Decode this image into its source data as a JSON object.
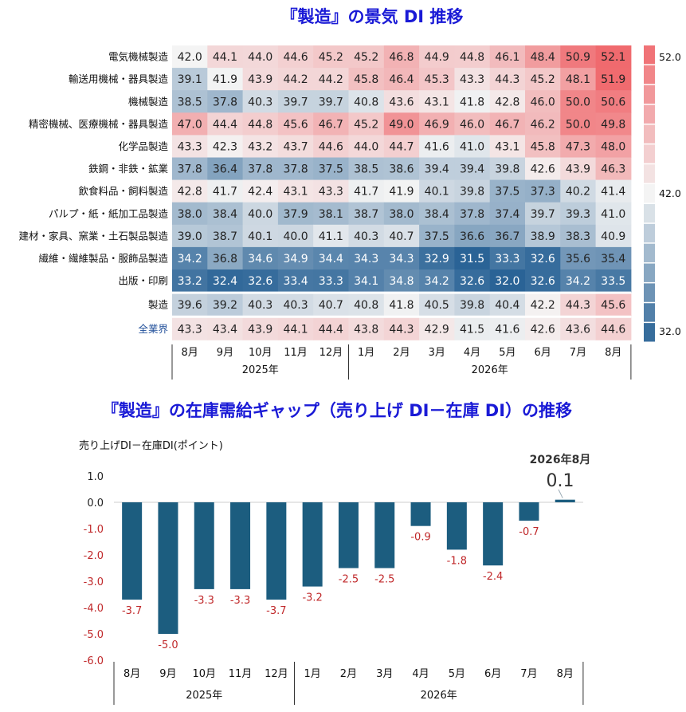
{
  "heatmap": {
    "title": "『製造』の景気 DI 推移",
    "rows": [
      {
        "label": "電気機械製造",
        "values": [
          42.0,
          44.1,
          44.0,
          44.6,
          45.2,
          45.2,
          46.8,
          44.9,
          44.8,
          46.1,
          48.4,
          50.9,
          52.1
        ]
      },
      {
        "label": "輸送用機械・器具製造",
        "values": [
          39.1,
          41.9,
          43.9,
          44.2,
          44.2,
          45.8,
          46.4,
          45.3,
          43.3,
          44.3,
          45.2,
          48.1,
          51.9
        ]
      },
      {
        "label": "機械製造",
        "values": [
          38.5,
          37.8,
          40.3,
          39.7,
          39.7,
          40.8,
          43.6,
          43.1,
          41.8,
          42.8,
          46.0,
          50.0,
          50.6
        ]
      },
      {
        "label": "精密機械、医療機械・器具製造",
        "values": [
          47.0,
          44.4,
          44.8,
          45.6,
          46.7,
          45.2,
          49.0,
          46.9,
          46.0,
          46.7,
          46.2,
          50.0,
          49.8
        ]
      },
      {
        "label": "化学品製造",
        "values": [
          43.3,
          42.3,
          43.2,
          43.7,
          44.6,
          44.0,
          44.7,
          41.6,
          41.0,
          43.1,
          45.8,
          47.3,
          48.0
        ]
      },
      {
        "label": "鉄鋼・非鉄・鉱業",
        "values": [
          37.8,
          36.4,
          37.8,
          37.8,
          37.5,
          38.5,
          38.6,
          39.4,
          39.4,
          39.8,
          42.6,
          43.9,
          46.3
        ]
      },
      {
        "label": "飲食料品・飼料製造",
        "values": [
          42.8,
          41.7,
          42.4,
          43.1,
          43.3,
          41.7,
          41.9,
          40.1,
          39.8,
          37.5,
          37.3,
          40.2,
          41.4
        ]
      },
      {
        "label": "パルプ・紙・紙加工品製造",
        "values": [
          38.0,
          38.4,
          40.0,
          37.9,
          38.1,
          38.7,
          38.0,
          38.4,
          37.8,
          37.4,
          39.7,
          39.3,
          41.0
        ]
      },
      {
        "label": "建材・家具、窯業・土石製品製造",
        "values": [
          39.0,
          38.7,
          40.1,
          40.0,
          41.1,
          40.3,
          40.7,
          37.5,
          36.6,
          36.7,
          38.9,
          38.3,
          40.9
        ]
      },
      {
        "label": "繊維・繊維製品・服飾品製造",
        "values": [
          34.2,
          36.8,
          34.6,
          34.9,
          34.4,
          34.3,
          34.3,
          32.9,
          31.5,
          33.3,
          32.6,
          35.6,
          35.4
        ]
      },
      {
        "label": "出版・印刷",
        "values": [
          33.2,
          32.4,
          32.6,
          33.4,
          33.3,
          34.1,
          34.8,
          34.2,
          32.6,
          32.0,
          32.6,
          34.2,
          33.5
        ]
      }
    ],
    "summary_rows": [
      {
        "label": "製造",
        "values": [
          39.6,
          39.2,
          40.3,
          40.3,
          40.7,
          40.8,
          41.8,
          40.5,
          39.8,
          40.4,
          42.2,
          44.3,
          45.6
        ]
      },
      {
        "label": "全業界",
        "values": [
          43.3,
          43.4,
          43.9,
          44.1,
          44.4,
          43.8,
          44.3,
          42.9,
          41.5,
          41.6,
          42.6,
          43.6,
          44.6
        ]
      }
    ],
    "months": [
      "8月",
      "9月",
      "10月",
      "11月",
      "12月",
      "1月",
      "2月",
      "3月",
      "4月",
      "5月",
      "6月",
      "7月",
      "8月"
    ],
    "years": [
      "2025年",
      "2026年"
    ],
    "colorbar": {
      "max_label": "52.0",
      "mid_label": "42.0",
      "min_label": "32.0",
      "high_color": "#f06a6e",
      "mid_color": "#f4f4f4",
      "low_color": "#2a6396"
    }
  },
  "chart_data": {
    "type": "bar",
    "title": "『製造』の在庫需給ギャップ（売り上げ DI－在庫 DI）の推移",
    "ylabel": "売り上げDI－在庫DI(ポイント)",
    "categories": [
      "8月",
      "9月",
      "10月",
      "11月",
      "12月",
      "1月",
      "2月",
      "3月",
      "4月",
      "5月",
      "6月",
      "7月",
      "8月"
    ],
    "years": [
      "2025年",
      "2026年"
    ],
    "values": [
      -3.7,
      -5.0,
      -3.3,
      -3.3,
      -3.7,
      -3.2,
      -2.5,
      -2.5,
      -0.9,
      -1.8,
      -2.4,
      -0.7,
      0.1
    ],
    "data_labels": [
      "-3.7",
      "-5.0",
      "-3.3",
      "-3.3",
      "-3.7",
      "-3.2",
      "-2.5",
      "-2.5",
      "-0.9",
      "-1.8",
      "-2.4",
      "-0.7",
      ""
    ],
    "yticks": [
      "1.0",
      "0.0",
      "-1.0",
      "-2.0",
      "-3.0",
      "-4.0",
      "-5.0",
      "-6.0"
    ],
    "ylim": [
      -6.0,
      1.0
    ],
    "grid": false,
    "bar_color": "#1c5d7f",
    "callout_title": "2026年8月",
    "callout_value": "0.1"
  }
}
